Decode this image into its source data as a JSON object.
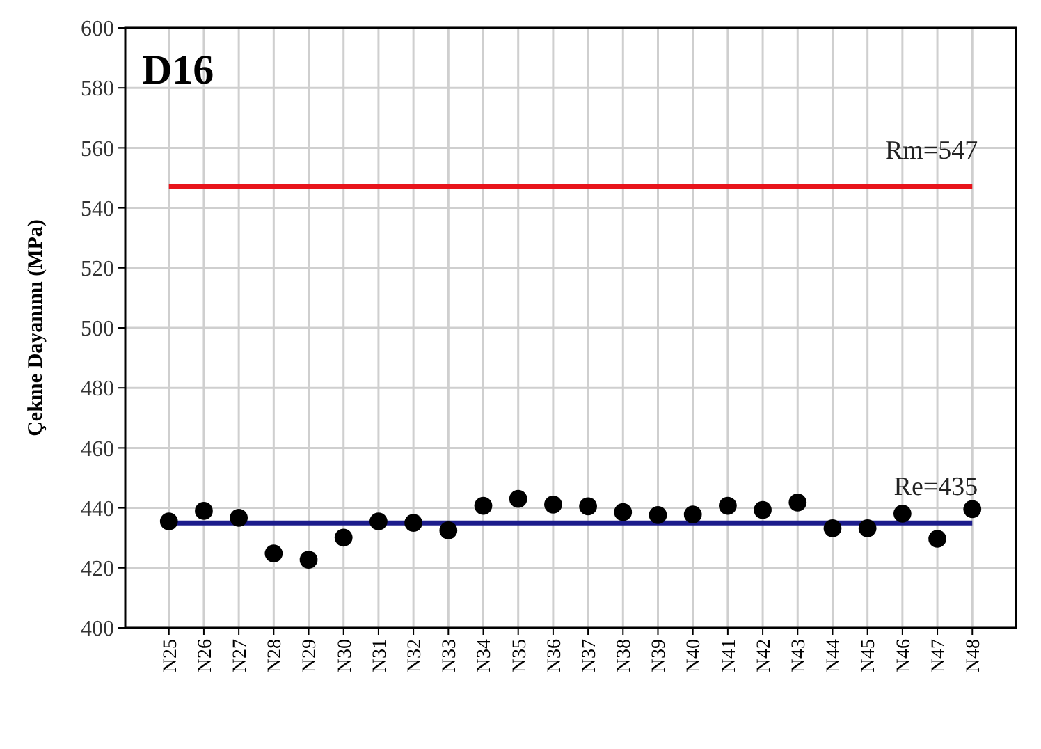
{
  "chart_data": {
    "type": "scatter",
    "title": "D16",
    "ylabel": "Çekme Dayanımı (MPa)",
    "categories": [
      "N25",
      "N26",
      "N27",
      "N28",
      "N29",
      "N30",
      "N31",
      "N32",
      "N33",
      "N34",
      "N35",
      "N36",
      "N37",
      "N38",
      "N39",
      "N40",
      "N41",
      "N42",
      "N43",
      "N44",
      "N45",
      "N46",
      "N47",
      "N48"
    ],
    "series": [
      {
        "color": "#000000",
        "values": [
          435.5,
          439,
          436.7,
          424.8,
          422.7,
          430.1,
          435.5,
          435,
          432.5,
          440.7,
          443,
          441.1,
          440.5,
          438.6,
          437.6,
          437.8,
          440.7,
          439.3,
          441.8,
          433.2,
          433.2,
          438.1,
          429.7,
          439.6
        ]
      }
    ],
    "ylim": [
      400,
      600
    ],
    "yticks": [
      400,
      420,
      440,
      460,
      480,
      500,
      520,
      540,
      560,
      580,
      600
    ],
    "ref_lines": [
      {
        "axis": "y",
        "value": 547,
        "label": "Rm=547",
        "color": "#e8141b"
      },
      {
        "axis": "y",
        "value": 435,
        "label": "Re=435",
        "color": "#1c1c8c"
      }
    ],
    "grid": true,
    "marker": "circle"
  }
}
